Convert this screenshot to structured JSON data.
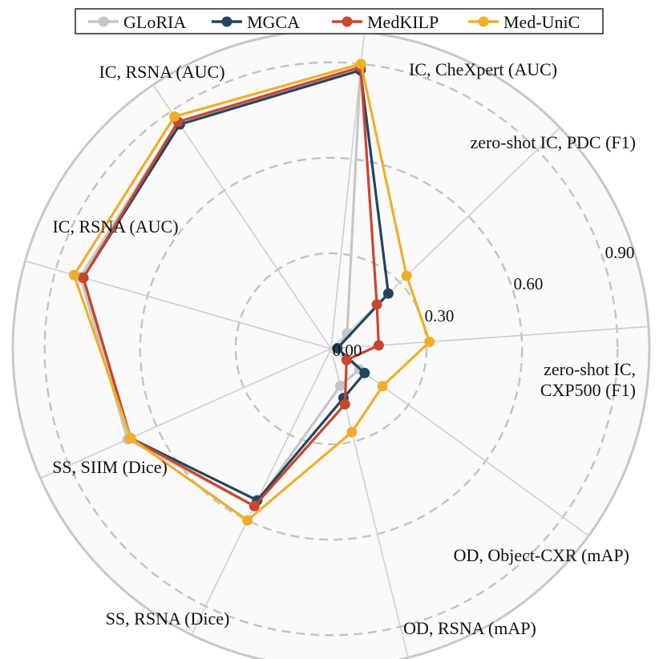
{
  "chart_data": {
    "type": "radar",
    "axes": [
      [
        "IC, CheXpert (AUC)"
      ],
      [
        "zero-shot IC, PDC (F1)"
      ],
      [
        "zero-shot IC,",
        "CXP500 (F1)"
      ],
      [
        "OD, Object-CXR  (mAP)"
      ],
      [
        "OD, RSNA (mAP)"
      ],
      [
        "SS, RSNA  (Dice)"
      ],
      [
        "SS, SIIM (Dice)"
      ],
      [
        "IC, RSNA (AUC)"
      ],
      [
        "IC, RSNA (AUC)"
      ]
    ],
    "radial_ticks": [
      {
        "value": 0.0,
        "label": "0.00"
      },
      {
        "value": 0.3,
        "label": "0.30"
      },
      {
        "value": 0.6,
        "label": "0.60"
      },
      {
        "value": 0.9,
        "label": "0.90"
      }
    ],
    "rlim": [
      0,
      1.0
    ],
    "grid": true,
    "legend_position": "top",
    "series": [
      {
        "name": "GLoRIA",
        "color": "#c6c6c6",
        "values": [
          0.88,
          0.07,
          0.02,
          0.11,
          0.12,
          0.55,
          0.7,
          0.82,
          0.86
        ]
      },
      {
        "name": "MGCA",
        "color": "#23455e",
        "values": [
          0.88,
          0.25,
          0.02,
          0.13,
          0.16,
          0.53,
          0.69,
          0.81,
          0.85
        ]
      },
      {
        "name": "MedKILP",
        "color": "#c8452e",
        "values": [
          0.89,
          0.2,
          0.15,
          0.06,
          0.18,
          0.55,
          0.69,
          0.81,
          0.86
        ]
      },
      {
        "name": "Med-UniC",
        "color": "#f0ae28",
        "values": [
          0.9,
          0.33,
          0.31,
          0.2,
          0.27,
          0.6,
          0.69,
          0.84,
          0.88
        ]
      }
    ]
  }
}
